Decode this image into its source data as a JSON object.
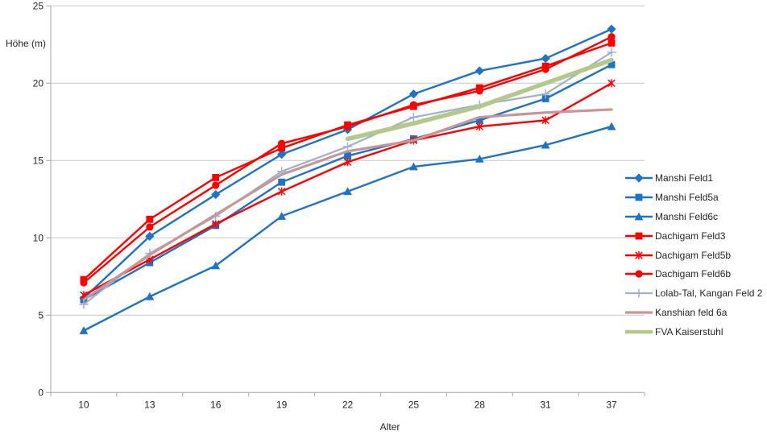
{
  "chart_data": {
    "type": "line",
    "title": "",
    "xlabel": "Alter",
    "ylabel": "Höhe (m)",
    "ylim": [
      0,
      25
    ],
    "yticks": [
      0,
      5,
      10,
      15,
      20,
      25
    ],
    "grid": "horizontal-only",
    "legend_position": "right",
    "categories": [
      "10",
      "13",
      "16",
      "19",
      "22",
      "25",
      "28",
      "31",
      "37"
    ],
    "series": [
      {
        "name": "Manshi Feld1",
        "color": "#1d73c4",
        "marker": "diamond",
        "width": 2.4,
        "values": [
          6.1,
          10.1,
          12.8,
          15.4,
          17.0,
          19.3,
          20.8,
          21.6,
          23.5
        ]
      },
      {
        "name": "Manshi Feld5a",
        "color": "#1d73c4",
        "marker": "square",
        "width": 2.4,
        "values": [
          6.0,
          8.4,
          10.8,
          13.6,
          15.3,
          16.4,
          17.6,
          19.0,
          21.2
        ]
      },
      {
        "name": "Manshi Feld6c",
        "color": "#1d73c4",
        "marker": "triangle",
        "width": 2.4,
        "values": [
          4.0,
          6.2,
          8.2,
          11.4,
          13.0,
          14.6,
          15.1,
          16.0,
          17.2
        ]
      },
      {
        "name": "Dachigam Feld3",
        "color": "#fe0000",
        "marker": "square",
        "width": 2.4,
        "values": [
          7.3,
          11.2,
          13.9,
          15.8,
          17.3,
          18.5,
          19.7,
          21.1,
          22.6
        ]
      },
      {
        "name": "Dachigam Feld5b",
        "color": "#fe0000",
        "marker": "star",
        "width": 2.4,
        "values": [
          6.3,
          8.6,
          10.9,
          13.0,
          14.9,
          16.3,
          17.2,
          17.6,
          20.0
        ]
      },
      {
        "name": "Dachigam Feld6b",
        "color": "#fe0000",
        "marker": "circle",
        "width": 2.4,
        "values": [
          7.1,
          10.7,
          13.4,
          16.1,
          17.2,
          18.6,
          19.5,
          20.9,
          23.0
        ]
      },
      {
        "name": "Lolab-Tal, Kangan Feld 2",
        "color": "#a0afce",
        "marker": "plus",
        "width": 2.2,
        "values": [
          5.7,
          9.0,
          11.4,
          14.3,
          15.9,
          17.8,
          18.6,
          19.3,
          22.0
        ]
      },
      {
        "name": "Kanshian feld 6a",
        "color": "#c99596",
        "marker": "none",
        "width": 3.2,
        "values": [
          6.0,
          8.9,
          11.5,
          14.1,
          15.6,
          16.3,
          17.8,
          18.1,
          18.3
        ]
      },
      {
        "name": "FVA Kaiserstuhl",
        "color": "#b5c88c",
        "marker": "none",
        "width": 5.5,
        "values": [
          null,
          null,
          null,
          null,
          16.4,
          17.4,
          18.5,
          20.0,
          21.5
        ]
      }
    ],
    "colors": {
      "gridline": "#c9c9c9",
      "axis": "#a6a6a6",
      "text": "#262626",
      "background": "#ffffff"
    }
  }
}
